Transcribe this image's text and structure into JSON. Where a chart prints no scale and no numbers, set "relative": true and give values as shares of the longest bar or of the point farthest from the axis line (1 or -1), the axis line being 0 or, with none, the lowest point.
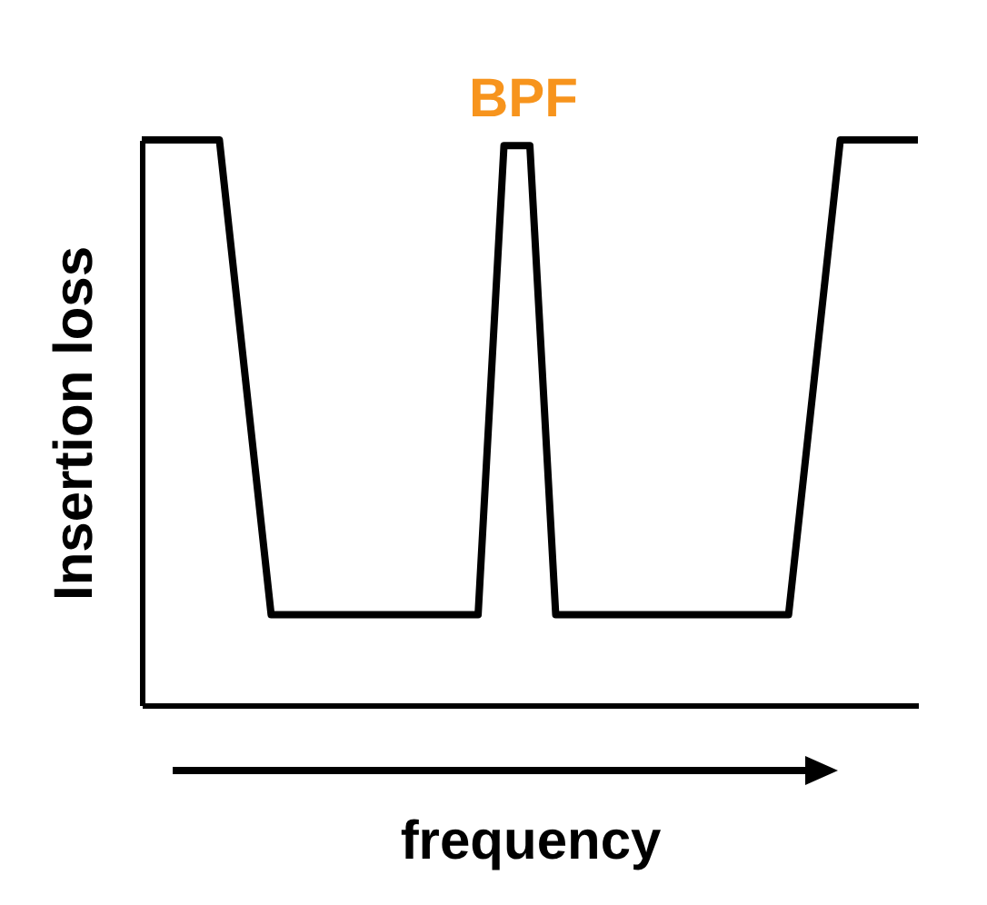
{
  "chart_data": {
    "type": "line",
    "relative": true,
    "xlabel": "frequency",
    "ylabel": "Insertion loss",
    "annotations": [
      "BPF"
    ],
    "categories": [
      null,
      null,
      null,
      null,
      null,
      null,
      null,
      null,
      null,
      null,
      null,
      null,
      null,
      null,
      null,
      null,
      null,
      null,
      null,
      null,
      null,
      null,
      null,
      null,
      null,
      null,
      null,
      null,
      null,
      null,
      null
    ],
    "series": [
      {
        "color": "#000000",
        "values": [
          1,
          1,
          1,
          1,
          0.58,
          0.16,
          0.16,
          0.16,
          0.16,
          0.16,
          0.16,
          0.16,
          0.16,
          0.16,
          0.99,
          0.99,
          0.16,
          0.16,
          0.16,
          0.16,
          0.16,
          0.16,
          0.16,
          0.16,
          0.16,
          0.16,
          0.58,
          1,
          1,
          1,
          1
        ]
      }
    ],
    "marker": "none",
    "grid": false,
    "tick_labels": false
  }
}
